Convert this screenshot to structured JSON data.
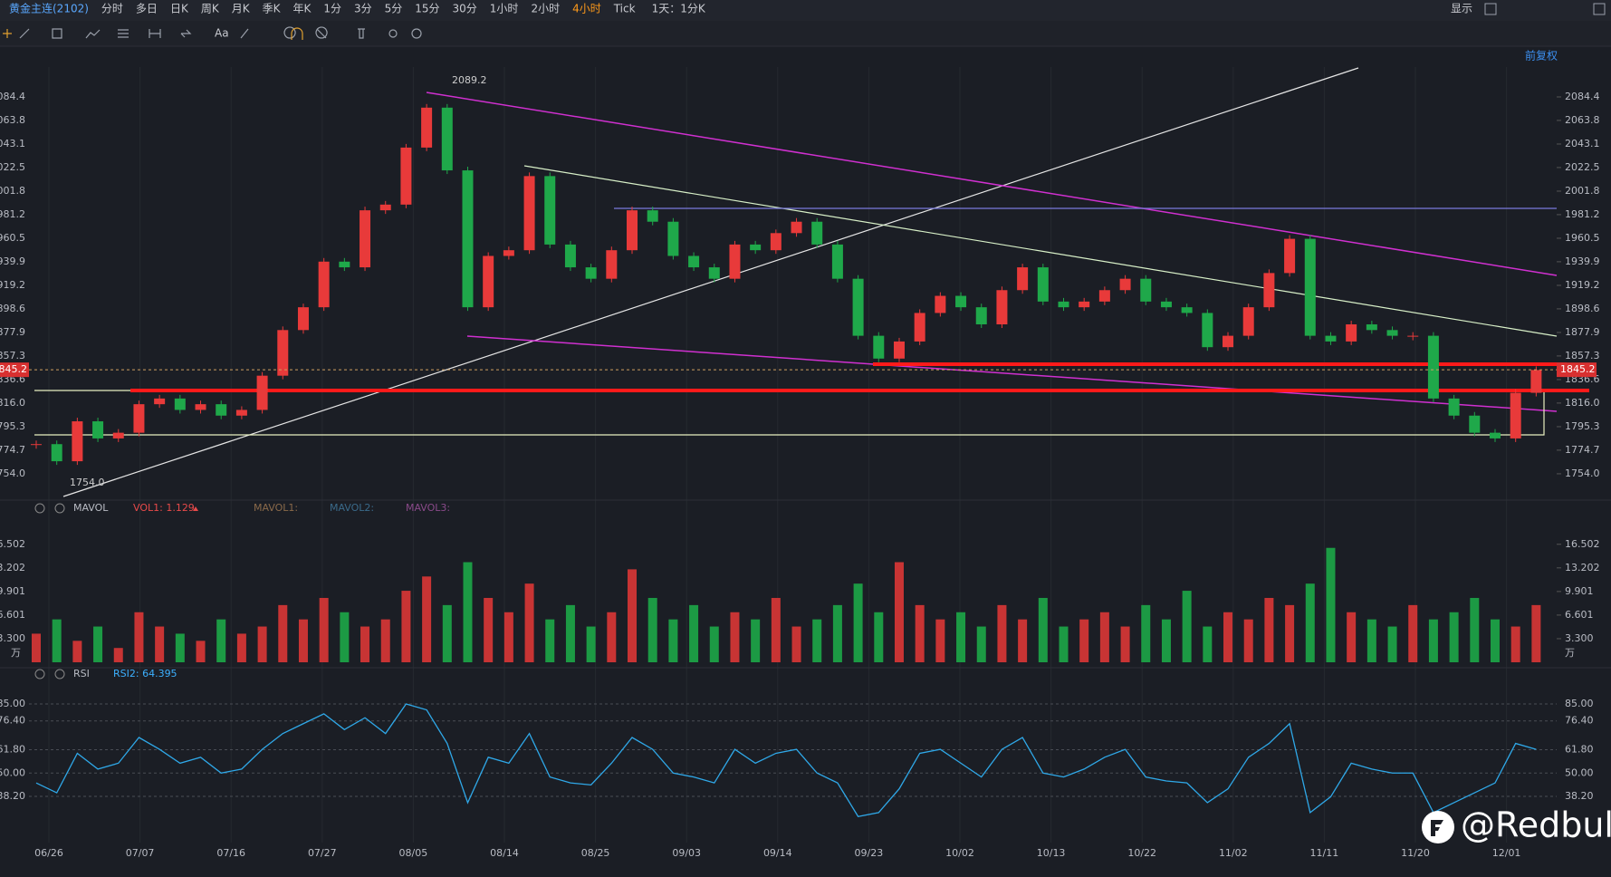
{
  "toolbar": {
    "symbol": "黄金主连(2102)",
    "periods": [
      "分时",
      "多日",
      "日K",
      "周K",
      "月K",
      "季K",
      "年K",
      "1分",
      "3分",
      "5分",
      "15分",
      "30分",
      "1小时",
      "2小时",
      "4小时",
      "Tick"
    ],
    "active_index": 14,
    "range": "1天：1分K",
    "display": "显示",
    "text_tool": "Aa"
  },
  "price_chart": {
    "type": "candlestick",
    "adjust": "前复权",
    "ylim": [
      1734.1,
      2110.6
    ],
    "yticks": [
      2084.4,
      2063.8,
      2043.1,
      2022.5,
      2001.8,
      1981.2,
      1960.5,
      1939.9,
      1919.2,
      1898.6,
      1877.9,
      1857.3,
      1836.6,
      {
        "value": 1816,
        "label": "1816.0"
      },
      1795.3,
      1774.7,
      {
        "value": 1754,
        "label": "1754.0"
      }
    ],
    "high": 2089.2,
    "low": {
      "value": 1754,
      "label": "1754.0"
    },
    "last_price": 1845.2,
    "closes": [
      1780,
      1765,
      1800,
      1785,
      1790,
      1815,
      1820,
      1810,
      1815,
      1805,
      1810,
      1840,
      1880,
      1900,
      1940,
      1935,
      1985,
      1990,
      2040,
      2075,
      2020,
      1900,
      1945,
      1950,
      2015,
      1955,
      1935,
      1925,
      1950,
      1985,
      1975,
      1945,
      1935,
      1925,
      1955,
      1950,
      1965,
      1975,
      1955,
      1925,
      1875,
      1855,
      1870,
      1895,
      1910,
      1900,
      1885,
      1915,
      1935,
      1905,
      1900,
      1905,
      1915,
      1925,
      1905,
      1900,
      1895,
      1865,
      1875,
      1900,
      1930,
      1960,
      1875,
      1870,
      1885,
      1880,
      1875,
      1875,
      1820,
      1805,
      1790,
      1785,
      1825,
      1845
    ]
  },
  "volume_chart": {
    "type": "bar",
    "name": "MAVOL",
    "indicator": "VOL1: 1.129",
    "ma_labels": [
      "MAVOL1:",
      "MAVOL2:",
      "MAVOL3:"
    ],
    "unit": "万",
    "ylim": [
      0,
      20.4
    ],
    "yticks": [
      16.502,
      13.202,
      9.901,
      6.601,
      {
        "value": 3.3,
        "label": "3.300"
      }
    ],
    "values": [
      4,
      6,
      3,
      5,
      2,
      7,
      5,
      4,
      3,
      6,
      4,
      5,
      8,
      6,
      9,
      7,
      5,
      6,
      10,
      12,
      8,
      14,
      9,
      7,
      11,
      6,
      8,
      5,
      7,
      13,
      9,
      6,
      8,
      5,
      7,
      6,
      9,
      5,
      6,
      8,
      11,
      7,
      14,
      8,
      6,
      7,
      5,
      8,
      6,
      9,
      5,
      6,
      7,
      5,
      8,
      6,
      10,
      5,
      7,
      6,
      9,
      8,
      11,
      16,
      7,
      6,
      5,
      8,
      6,
      7,
      9,
      6,
      5,
      8
    ]
  },
  "rsi_chart": {
    "type": "line",
    "name": "RSI",
    "indicator": "RSI2: 64.395",
    "color": "#2fa8e8",
    "ylim": [
      14.8,
      93.7
    ],
    "yticks": [
      {
        "value": 85,
        "label": "85.00"
      },
      {
        "value": 76.4,
        "label": "76.40"
      },
      {
        "value": 61.8,
        "label": "61.80"
      },
      {
        "value": 50,
        "label": "50.00"
      },
      {
        "value": 38.2,
        "label": "38.20"
      }
    ],
    "values": [
      45,
      40,
      60,
      52,
      55,
      68,
      62,
      55,
      58,
      50,
      52,
      62,
      70,
      75,
      80,
      72,
      78,
      70,
      85,
      82,
      65,
      35,
      58,
      55,
      70,
      48,
      45,
      44,
      55,
      68,
      62,
      50,
      48,
      45,
      62,
      55,
      60,
      62,
      50,
      45,
      28,
      30,
      42,
      60,
      62,
      55,
      48,
      62,
      68,
      50,
      48,
      52,
      58,
      62,
      48,
      46,
      45,
      35,
      42,
      58,
      65,
      75,
      30,
      38,
      55,
      52,
      50,
      50,
      30,
      35,
      40,
      45,
      65,
      62
    ]
  },
  "dates": [
    "06/26",
    "07/07",
    "07/16",
    "07/27",
    "08/05",
    "08/14",
    "08/25",
    "09/03",
    "09/14",
    "09/23",
    "10/02",
    "10/13",
    "10/22",
    "11/02",
    "11/11",
    "11/20",
    "12/01"
  ],
  "watermark": "@Redbull"
}
